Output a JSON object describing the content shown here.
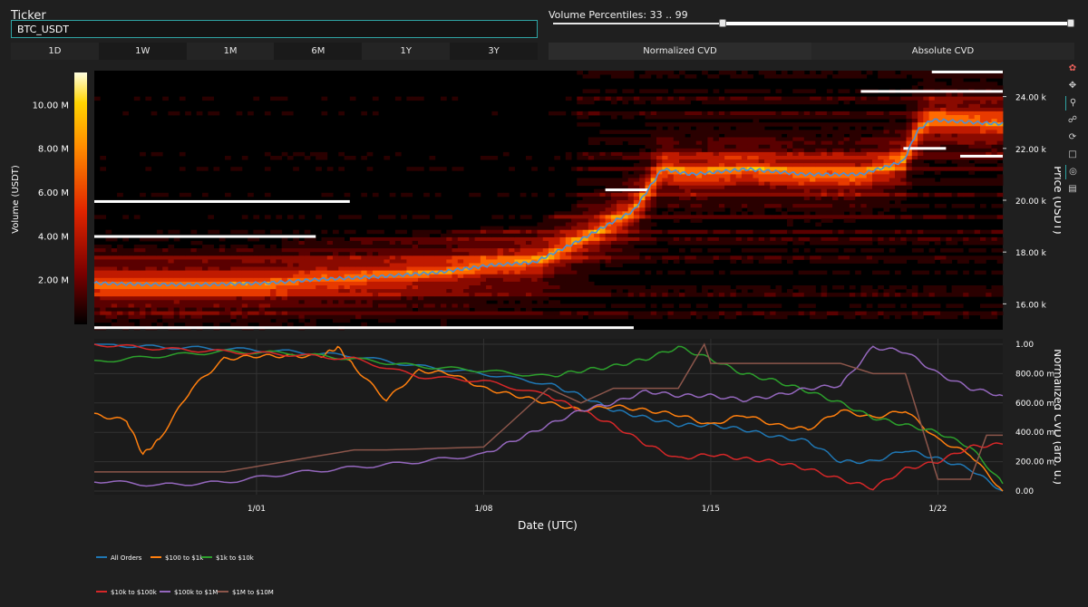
{
  "ticker": {
    "label": "Ticker",
    "value": "BTC_USDT"
  },
  "volume_percentiles": {
    "label": "Volume Percentiles: 33 .. 99",
    "low": 33,
    "high": 99
  },
  "timeframes": [
    "1D",
    "1W",
    "1M",
    "6M",
    "1Y",
    "3Y"
  ],
  "cvd_modes": [
    "Normalized CVD",
    "Absolute CVD"
  ],
  "toolbar": [
    "plotly-logo-icon",
    "pan-icon",
    "zoom-icon",
    "box-select-icon",
    "reset-icon",
    "save-icon",
    "crosshair-icon",
    "chat-icon"
  ],
  "chart_data": [
    {
      "type": "heatmap",
      "title": "",
      "xlabel": "",
      "ylabel": "Price (USDT)",
      "ylim": [
        15000,
        25000
      ],
      "y_ticks": [
        16000,
        18000,
        20000,
        22000,
        24000
      ],
      "y_tick_labels": [
        "16.00 k",
        "18.00 k",
        "20.00 k",
        "22.00 k",
        "24.00 k"
      ],
      "colorbar": {
        "label": "Volume (USDT)",
        "range": [
          0,
          11500000
        ],
        "ticks": [
          2000000,
          4000000,
          6000000,
          8000000,
          10000000
        ],
        "tick_labels": [
          "2.00 M",
          "4.00 M",
          "6.00 M",
          "8.00 M",
          "10.00 M"
        ],
        "colors": [
          "#000000",
          "#7a0000",
          "#e02500",
          "#ff8a00",
          "#ffd400",
          "#ffffe0"
        ]
      },
      "price_series": {
        "name": "Price",
        "color": "#4a90d9",
        "x": [
          0,
          2,
          4,
          6,
          8,
          10,
          12,
          14,
          15.5,
          17,
          18,
          19,
          20,
          20.5,
          21,
          23,
          25,
          27,
          28.5,
          29,
          29.5,
          31,
          32
        ],
        "y": [
          16800,
          16750,
          16750,
          16800,
          16950,
          17050,
          17200,
          17500,
          17600,
          18400,
          19000,
          19600,
          21200,
          21100,
          21000,
          21200,
          21000,
          21000,
          21500,
          22700,
          23100,
          23000,
          22950
        ]
      },
      "bright_levels": [
        {
          "price": 15080,
          "x0": 0,
          "x1": 19
        },
        {
          "price": 19950,
          "x0": 0,
          "x1": 9
        },
        {
          "price": 18600,
          "x0": 0,
          "x1": 7.8
        },
        {
          "price": 20400,
          "x0": 18,
          "x1": 19.5
        },
        {
          "price": 24950,
          "x0": 29.5,
          "x1": 32
        },
        {
          "price": 24200,
          "x0": 27,
          "x1": 32
        },
        {
          "price": 22000,
          "x0": 28.5,
          "x1": 30
        },
        {
          "price": 21700,
          "x0": 30.5,
          "x1": 32
        }
      ]
    },
    {
      "type": "line",
      "title": "",
      "xlabel": "Date (UTC)",
      "ylabel": "Normalized CVD (arb. u.)",
      "ylim": [
        0,
        1
      ],
      "y_ticks": [
        0,
        0.2,
        0.4,
        0.6,
        0.8,
        1.0
      ],
      "y_tick_labels": [
        "0.00",
        "200.00 m",
        "400.00 m",
        "600.00 m",
        "800.00 m",
        "1.00"
      ],
      "x_ticks": [
        5,
        12,
        19,
        26
      ],
      "x_tick_labels": [
        "1/01",
        "1/08",
        "1/15",
        "1/22"
      ],
      "xlim": [
        0,
        28
      ],
      "series": [
        {
          "name": "All Orders",
          "color": "#1f77b4",
          "x": [
            0,
            2,
            4,
            6,
            8,
            10,
            12,
            14,
            15,
            16,
            17,
            18,
            19,
            20,
            21,
            22,
            23,
            24,
            25,
            26,
            27,
            28
          ],
          "y": [
            1.0,
            0.98,
            0.97,
            0.95,
            0.92,
            0.85,
            0.8,
            0.73,
            0.65,
            0.55,
            0.5,
            0.45,
            0.45,
            0.42,
            0.37,
            0.34,
            0.2,
            0.2,
            0.28,
            0.22,
            0.15,
            0.0
          ]
        },
        {
          "name": "$100 to $1k",
          "color": "#ff7f0e",
          "x": [
            0,
            1,
            1.5,
            2,
            3,
            4,
            5,
            6,
            7,
            7.5,
            8,
            9,
            10,
            11,
            12,
            13,
            14,
            15,
            16,
            17,
            18,
            19,
            20,
            21,
            22,
            23,
            24,
            25,
            26,
            27,
            28
          ],
          "y": [
            0.52,
            0.48,
            0.25,
            0.35,
            0.7,
            0.9,
            0.92,
            0.92,
            0.92,
            0.98,
            0.85,
            0.62,
            0.82,
            0.8,
            0.7,
            0.65,
            0.6,
            0.55,
            0.58,
            0.55,
            0.52,
            0.45,
            0.52,
            0.45,
            0.42,
            0.55,
            0.5,
            0.55,
            0.35,
            0.25,
            0.0
          ]
        },
        {
          "name": "$1k to $10k",
          "color": "#2ca02c",
          "x": [
            0,
            2,
            4,
            6,
            8,
            10,
            12,
            14,
            15,
            16,
            17,
            18,
            19,
            20,
            21,
            22,
            23,
            24,
            25,
            26,
            27,
            28
          ],
          "y": [
            0.88,
            0.92,
            0.95,
            0.94,
            0.9,
            0.85,
            0.82,
            0.78,
            0.82,
            0.85,
            0.9,
            0.98,
            0.9,
            0.8,
            0.75,
            0.68,
            0.6,
            0.5,
            0.45,
            0.4,
            0.3,
            0.05
          ]
        },
        {
          "name": "$10k to $100k",
          "color": "#d62728",
          "x": [
            0,
            2,
            4,
            6,
            8,
            10,
            12,
            14,
            15,
            16,
            17,
            18,
            19,
            20,
            21,
            22,
            23,
            24,
            25,
            26,
            27,
            28
          ],
          "y": [
            1.0,
            0.97,
            0.95,
            0.93,
            0.9,
            0.78,
            0.75,
            0.65,
            0.55,
            0.45,
            0.32,
            0.22,
            0.25,
            0.22,
            0.2,
            0.15,
            0.08,
            0.02,
            0.15,
            0.2,
            0.3,
            0.32
          ]
        },
        {
          "name": "$100k to $1M",
          "color": "#9467bd",
          "x": [
            0,
            2,
            4,
            6,
            8,
            10,
            12,
            13,
            14,
            15,
            16,
            17,
            18,
            19,
            20,
            21,
            22,
            23,
            24,
            25,
            26,
            27,
            28
          ],
          "y": [
            0.07,
            0.04,
            0.06,
            0.12,
            0.16,
            0.2,
            0.25,
            0.35,
            0.45,
            0.55,
            0.6,
            0.68,
            0.65,
            0.65,
            0.62,
            0.65,
            0.7,
            0.72,
            0.98,
            0.95,
            0.8,
            0.7,
            0.65
          ]
        },
        {
          "name": "$1M to $10M",
          "color": "#8c564b",
          "x": [
            0,
            4,
            8,
            9,
            12,
            14,
            15,
            16,
            17,
            18,
            18.8,
            19,
            21,
            21.5,
            23,
            24,
            25,
            26,
            27,
            27.5,
            28
          ],
          "y": [
            0.13,
            0.13,
            0.28,
            0.28,
            0.3,
            0.7,
            0.6,
            0.7,
            0.7,
            0.7,
            1.0,
            0.87,
            0.87,
            0.87,
            0.87,
            0.8,
            0.8,
            0.08,
            0.08,
            0.38,
            0.38
          ]
        }
      ]
    }
  ]
}
